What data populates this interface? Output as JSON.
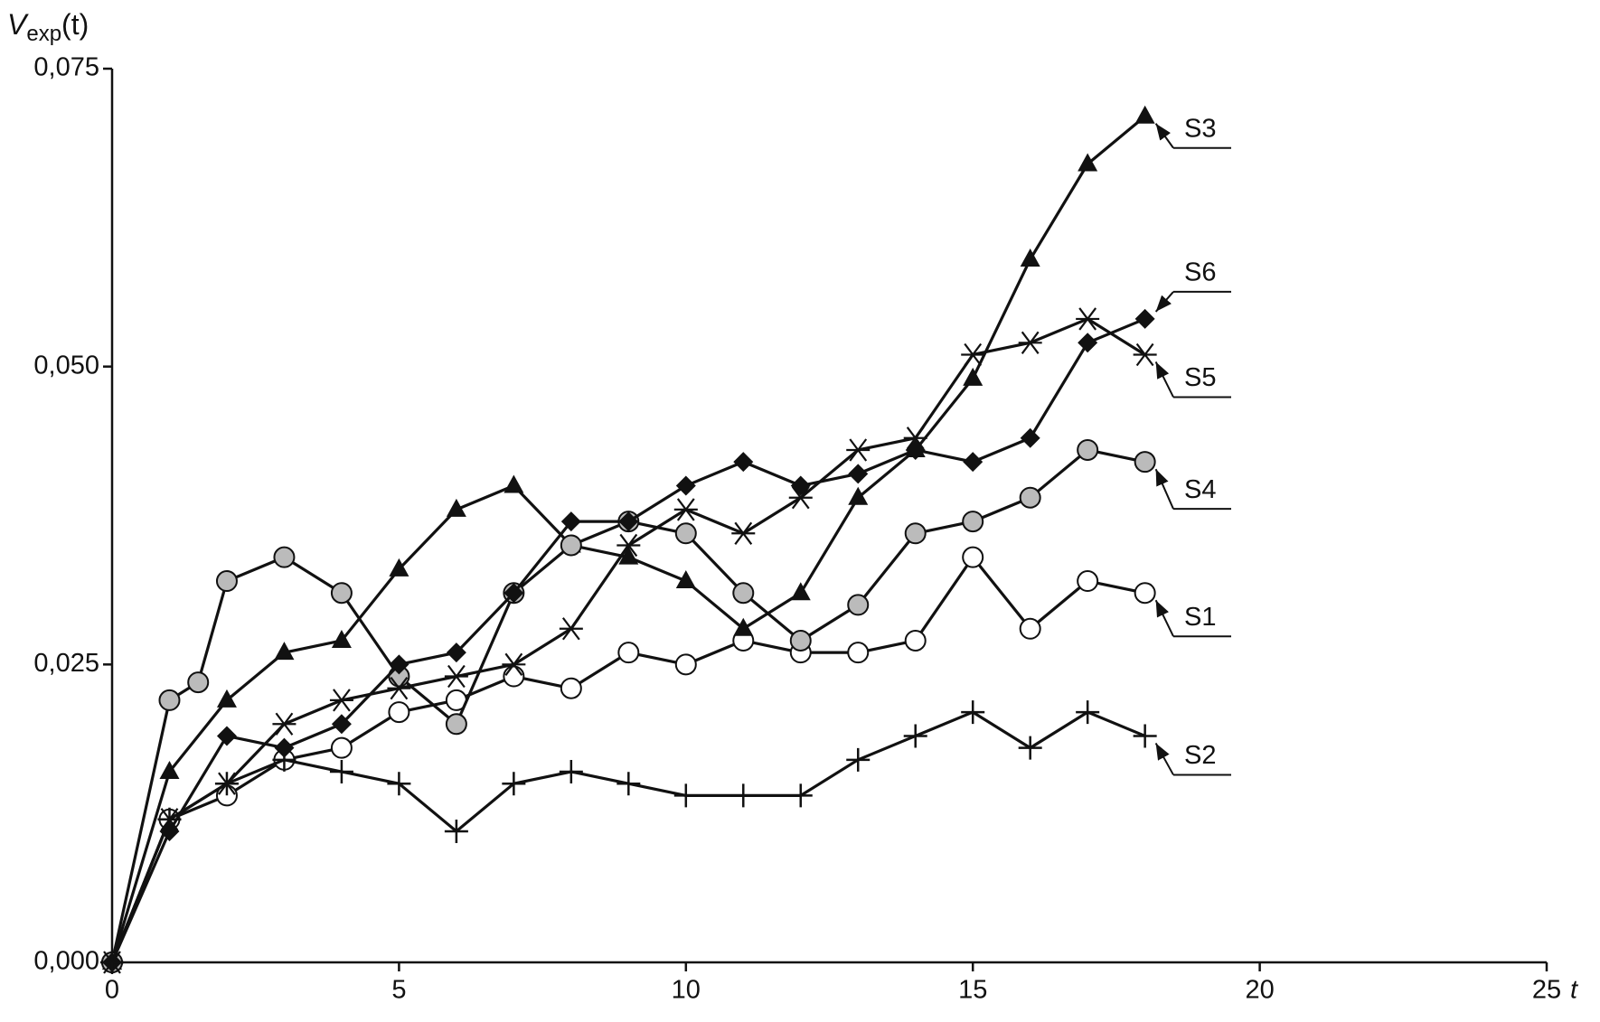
{
  "chart_data": {
    "type": "line",
    "ylabel": {
      "main": "V",
      "sub": "exp",
      "tail": "(t)"
    },
    "xlabel": "t",
    "xlim": [
      0,
      25
    ],
    "xticks": [
      0,
      5,
      10,
      15,
      20,
      25
    ],
    "ylim": [
      0,
      0.075
    ],
    "yticks": [
      {
        "value": 0,
        "label": "0,000"
      },
      {
        "value": 0.025,
        "label": "0,025"
      },
      {
        "value": 0.05,
        "label": "0,050"
      },
      {
        "value": 0.075,
        "label": "0,075"
      }
    ],
    "x": [
      0,
      1,
      2,
      3,
      4,
      5,
      6,
      7,
      8,
      9,
      10,
      11,
      12,
      13,
      14,
      15,
      16,
      17,
      18
    ],
    "series": [
      {
        "name": "S1",
        "color": "#111111",
        "marker": "circle-open",
        "values": [
          0,
          0.012,
          0.014,
          0.017,
          0.018,
          0.021,
          0.022,
          0.024,
          0.023,
          0.026,
          0.025,
          0.027,
          0.026,
          0.026,
          0.027,
          0.034,
          0.028,
          0.032,
          0.031
        ]
      },
      {
        "name": "S2",
        "color": "#111111",
        "marker": "plus",
        "values": [
          0,
          0.012,
          0.015,
          0.017,
          0.016,
          0.015,
          0.011,
          0.015,
          0.016,
          0.015,
          0.014,
          0.014,
          0.014,
          0.017,
          0.019,
          0.021,
          0.018,
          0.021,
          0.019
        ]
      },
      {
        "name": "S3",
        "color": "#111111",
        "marker": "triangle",
        "values": [
          0,
          0.016,
          0.022,
          0.026,
          0.027,
          0.033,
          0.038,
          0.04,
          0.035,
          0.034,
          0.032,
          0.028,
          0.031,
          0.039,
          0.043,
          0.049,
          0.059,
          0.067,
          0.071
        ]
      },
      {
        "name": "S4",
        "color": "#111111",
        "marker": "circle-gray",
        "x": [
          0,
          1,
          1.5,
          2,
          3,
          4,
          5,
          6,
          7,
          8,
          9,
          10,
          11,
          12,
          13,
          14,
          15,
          16,
          17,
          18
        ],
        "values": [
          0,
          0.022,
          0.0235,
          0.032,
          0.034,
          0.031,
          0.024,
          0.02,
          0.031,
          0.035,
          0.037,
          0.036,
          0.031,
          0.027,
          0.03,
          0.036,
          0.037,
          0.039,
          0.043,
          0.042
        ]
      },
      {
        "name": "S5",
        "color": "#111111",
        "marker": "asterisk",
        "values": [
          0,
          0.012,
          0.015,
          0.02,
          0.022,
          0.023,
          0.024,
          0.025,
          0.028,
          0.035,
          0.038,
          0.036,
          0.039,
          0.043,
          0.044,
          0.051,
          0.052,
          0.054,
          0.051
        ]
      },
      {
        "name": "S6",
        "color": "#111111",
        "marker": "diamond",
        "values": [
          0,
          0.011,
          0.019,
          0.018,
          0.02,
          0.025,
          0.026,
          0.031,
          0.037,
          0.037,
          0.04,
          0.042,
          0.04,
          0.041,
          0.043,
          0.042,
          0.044,
          0.052,
          0.054
        ]
      }
    ]
  }
}
